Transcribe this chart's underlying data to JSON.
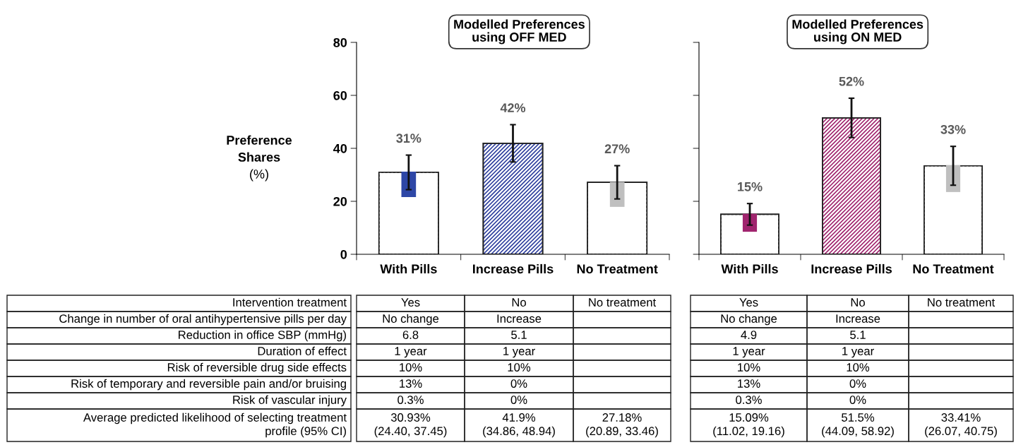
{
  "chart_data": [
    {
      "type": "bar",
      "title": "Modelled Preferences\nusing OFF MED",
      "ylabel": "Preference\nShares\n(%)",
      "categories": [
        "With Pills",
        "Increase Pills",
        "No Treatment"
      ],
      "ylim": [
        0,
        80
      ],
      "yticks": [
        0,
        20,
        40,
        60,
        80
      ],
      "series": [
        {
          "colors": [
            "#ffffff",
            "#2e3f9e",
            "#ffffff"
          ],
          "values": [
            30.93,
            41.9,
            27.18
          ],
          "errors": [
            [
              24.4,
              37.45
            ],
            [
              34.86,
              48.94
            ],
            [
              20.89,
              33.46
            ]
          ],
          "value_labels": [
            "31%",
            "42%",
            "27%"
          ]
        },
        {
          "colors": [
            "#2e47a6",
            null,
            "#bfbfbf"
          ],
          "base": [
            21.6,
            null,
            17.9
          ],
          "values": [
            9.6,
            null,
            9.4
          ]
        }
      ],
      "annotations": [
        "Intervention treatment",
        "Yes",
        "No",
        "No treatment",
        "Change in number of oral antihypertensive pills per day",
        "No change",
        "Increase",
        null,
        "Reduction in office SBP (mmHg)",
        "6.8",
        "5.1",
        null,
        "Duration of effect",
        "1 year",
        "1 year",
        null,
        "Risk of reversible drug side effects",
        "10%",
        "10%",
        null,
        "Risk of temporary and reversible pain and/or bruising",
        "13%",
        "0%",
        null,
        "Risk of vascular injury",
        "0.3%",
        "0%",
        null,
        "Average predicted likelihood of selecting treatment\nprofile (95% CI)",
        "30.93%\n(24.40, 37.45)",
        "41.9%\n(34.86, 48.94)",
        "27.18%\n(20.89, 33.46)"
      ]
    },
    {
      "type": "bar",
      "title": "Modelled Preferences\nusing ON MED",
      "tick_labels": "x",
      "categories": [
        "With Pills",
        "Increase Pills",
        "No Treatment"
      ],
      "ylim": [
        0,
        80
      ],
      "yticks": [
        0,
        20,
        40,
        60,
        80
      ],
      "series": [
        {
          "colors": [
            "#ffffff",
            "#a0246e",
            "#ffffff"
          ],
          "values": [
            15.09,
            51.5,
            33.41
          ],
          "errors": [
            [
              11.02,
              19.16
            ],
            [
              44.09,
              58.92
            ],
            [
              26.07,
              40.75
            ]
          ],
          "value_labels": [
            "15%",
            "52%",
            "33%"
          ]
        },
        {
          "colors": [
            "#a0246e",
            null,
            "#bfbfbf"
          ],
          "base": [
            8.5,
            null,
            23.5
          ],
          "values": [
            6.8,
            null,
            10.2
          ]
        }
      ],
      "annotations": [
        "Yes",
        "No",
        "No treatment",
        "No change",
        "Increase",
        null,
        "4.9",
        "5.1",
        null,
        "1 year",
        "1 year",
        null,
        "10%",
        "10%",
        null,
        "13%",
        "0%",
        null,
        "0.3%",
        "0%",
        null,
        "15.09%\n(11.02, 19.16)",
        "51.5%\n(44.09, 58.92)",
        "33.41%\n(26.07, 40.75)"
      ]
    }
  ]
}
